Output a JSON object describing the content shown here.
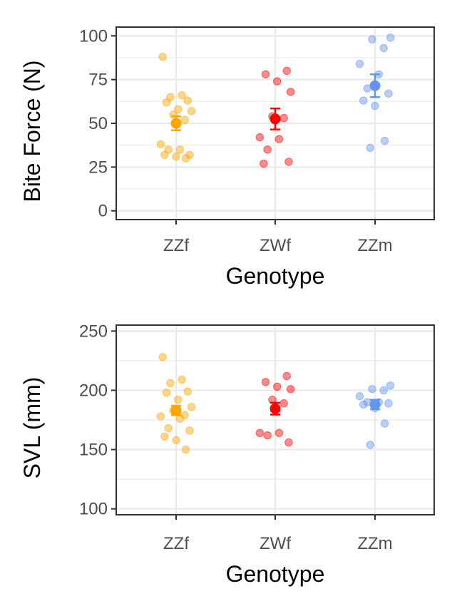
{
  "chart_data": [
    {
      "type": "scatter",
      "xlabel": "Genotype",
      "ylabel": "Bite Force (N)",
      "categories": [
        "ZZf",
        "ZWf",
        "ZZm"
      ],
      "ylim": [
        -5,
        105
      ],
      "yticks": [
        0,
        25,
        50,
        75,
        100
      ],
      "grid": true,
      "colors": {
        "ZZf": "#FFA500",
        "ZWf": "#FF0000",
        "ZZm": "#6495ED"
      },
      "raw_points": [
        {
          "category": "ZZf",
          "values": [
            88,
            66,
            65,
            63,
            62,
            58,
            57,
            55,
            52,
            38,
            35,
            35,
            32,
            32,
            31,
            30
          ]
        },
        {
          "category": "ZWf",
          "values": [
            80,
            78,
            74,
            68,
            54,
            53,
            42,
            41,
            35,
            28,
            27
          ]
        },
        {
          "category": "ZZm",
          "values": [
            99,
            98,
            93,
            84,
            78,
            70,
            67,
            63,
            60,
            40,
            36
          ]
        }
      ],
      "summary": [
        {
          "category": "ZZf",
          "mean": 50,
          "lower": 46,
          "upper": 54
        },
        {
          "category": "ZWf",
          "mean": 52.5,
          "lower": 46.5,
          "upper": 58.5
        },
        {
          "category": "ZZm",
          "mean": 71.5,
          "lower": 65,
          "upper": 78
        }
      ]
    },
    {
      "type": "scatter",
      "xlabel": "Genotype",
      "ylabel": "SVL (mm)",
      "categories": [
        "ZZf",
        "ZWf",
        "ZZm"
      ],
      "ylim": [
        95,
        255
      ],
      "yticks": [
        100,
        150,
        200,
        250
      ],
      "grid": true,
      "colors": {
        "ZZf": "#FFA500",
        "ZWf": "#FF0000",
        "ZZm": "#6495ED"
      },
      "raw_points": [
        {
          "category": "ZZf",
          "values": [
            228,
            209,
            206,
            199,
            198,
            192,
            186,
            183,
            179,
            178,
            176,
            168,
            166,
            161,
            158,
            150
          ]
        },
        {
          "category": "ZWf",
          "values": [
            212,
            207,
            203,
            201,
            192,
            189,
            164,
            164,
            162,
            156
          ]
        },
        {
          "category": "ZZm",
          "values": [
            204,
            201,
            200,
            195,
            190,
            190,
            189,
            188,
            185,
            172,
            154
          ]
        }
      ],
      "summary": [
        {
          "category": "ZZf",
          "mean": 183,
          "lower": 179,
          "upper": 187
        },
        {
          "category": "ZWf",
          "mean": 184.5,
          "lower": 179.5,
          "upper": 189.5
        },
        {
          "category": "ZZm",
          "mean": 188,
          "lower": 184,
          "upper": 192
        }
      ]
    }
  ]
}
